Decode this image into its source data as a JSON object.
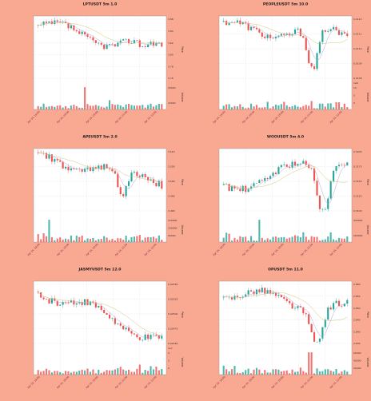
{
  "background": "#F9A891",
  "colors": {
    "up": "#26a69a",
    "down": "#ef5350",
    "ma_fast": "#b7a3d9",
    "ma_slow": "#cfc47a",
    "grid": "#dddddd",
    "axis_text": "#7a1f4a"
  },
  "chart_data": [
    {
      "type": "candlestick",
      "title": "LPTUSDT 5m 1.0",
      "ylabel": "Price",
      "vlabel": "Volume",
      "price_ticks": [
        "3.86",
        "3.84",
        "3.82",
        "3.80",
        "3.78",
        "3.76"
      ],
      "volume_ticks": [
        "20000",
        "10000"
      ],
      "x_ticks": [
        "Apr 24, 18:00",
        "Apr 24, 19:00",
        "Apr 24, 20:00",
        "Apr 24, 21:00",
        "Apr 24, 22:00"
      ],
      "start": 3.852,
      "end": 3.812,
      "min": 3.758,
      "max": 3.866,
      "dip_at": 0.85,
      "dip_depth": 0.05,
      "vol_spike_at": 0.38
    },
    {
      "type": "candlestick",
      "title": "PEOPLEUSDT 5m 10.0",
      "ylabel": "Price",
      "vlabel": "Volume",
      "price_ticks": [
        "0.0112",
        "0.0111",
        "0.0110",
        "0.0109",
        "0.0108"
      ],
      "volume_ticks": [
        "10",
        "5",
        "0"
      ],
      "vol_suffix": "1e6",
      "x_ticks": [
        "Apr 24, 18:00",
        "Apr 24, 19:00",
        "Apr 24, 20:00",
        "Apr 24, 21:00",
        "Apr 24, 22:00"
      ],
      "start": 0.01118,
      "end": 0.01114,
      "min": 0.0108,
      "max": 0.01125,
      "dip_at": 0.72,
      "dip_depth": 0.3,
      "vol_spike_at": -1
    },
    {
      "type": "candlestick",
      "title": "APEUSDT 5m 2.0",
      "ylabel": "Price",
      "vlabel": "Volume",
      "price_ticks": [
        "3.510",
        "3.505",
        "3.500",
        "3.495",
        "3.490"
      ],
      "volume_ticks": [
        "150000",
        "100000",
        "50000"
      ],
      "x_ticks": [
        "Apr 24, 18:00",
        "Apr 24, 19:00",
        "Apr 24, 20:00",
        "Apr 24, 21:00",
        "Apr 24, 22:00"
      ],
      "start": 3.511,
      "end": 3.502,
      "min": 3.487,
      "max": 3.514,
      "dip_at": 0.68,
      "dip_depth": 0.2,
      "vol_spike_at": 0.08
    },
    {
      "type": "candlestick",
      "title": "WOOUSDT 5m 4.0",
      "ylabel": "Price",
      "vlabel": "Volume",
      "price_ticks": [
        "0.3200",
        "0.3175",
        "0.3150",
        "0.3125",
        "0.3100"
      ],
      "volume_ticks": [
        "400000",
        "200000"
      ],
      "x_ticks": [
        "Apr 24, 18:00",
        "Apr 24, 19:00",
        "Apr 24, 20:00",
        "Apr 24, 21:00",
        "Apr 24, 22:00"
      ],
      "start": 0.3141,
      "end": 0.3195,
      "min": 0.3098,
      "max": 0.3205,
      "dip_at": 0.8,
      "dip_depth": 0.35,
      "vol_spike_at": 0.28
    },
    {
      "type": "candlestick",
      "title": "JASMYUSDT 5m 12.0",
      "ylabel": "Price",
      "vlabel": "Volume",
      "price_ticks": [
        "0.02550",
        "0.02525",
        "0.02500",
        "0.02475",
        "0.02450"
      ],
      "volume_ticks": [
        "4",
        "2",
        "0"
      ],
      "vol_suffix": "1e7",
      "x_ticks": [
        "Apr 24, 18:00",
        "Apr 24, 19:00",
        "Apr 24, 20:00",
        "Apr 24, 21:00",
        "Apr 24, 22:00"
      ],
      "start": 0.02545,
      "end": 0.0244,
      "min": 0.02432,
      "max": 0.02555,
      "dip_at": -1,
      "dip_depth": 0,
      "vol_spike_at": -1
    },
    {
      "type": "candlestick",
      "title": "OPUSDT 5m 11.0",
      "ylabel": "Price",
      "vlabel": "Volume",
      "price_ticks": [
        "2.860",
        "2.855",
        "2.850",
        "2.845",
        "2.840",
        "2.835"
      ],
      "volume_ticks": [
        "60000",
        "40000",
        "20000"
      ],
      "x_ticks": [
        "Apr 24, 18:00",
        "Apr 24, 19:00",
        "Apr 24, 20:00",
        "Apr 24, 21:00",
        "Apr 24, 22:00"
      ],
      "start": 2.858,
      "end": 2.849,
      "min": 2.832,
      "max": 2.862,
      "dip_at": 0.75,
      "dip_depth": 0.25,
      "vol_spike_at": 0.7
    }
  ]
}
